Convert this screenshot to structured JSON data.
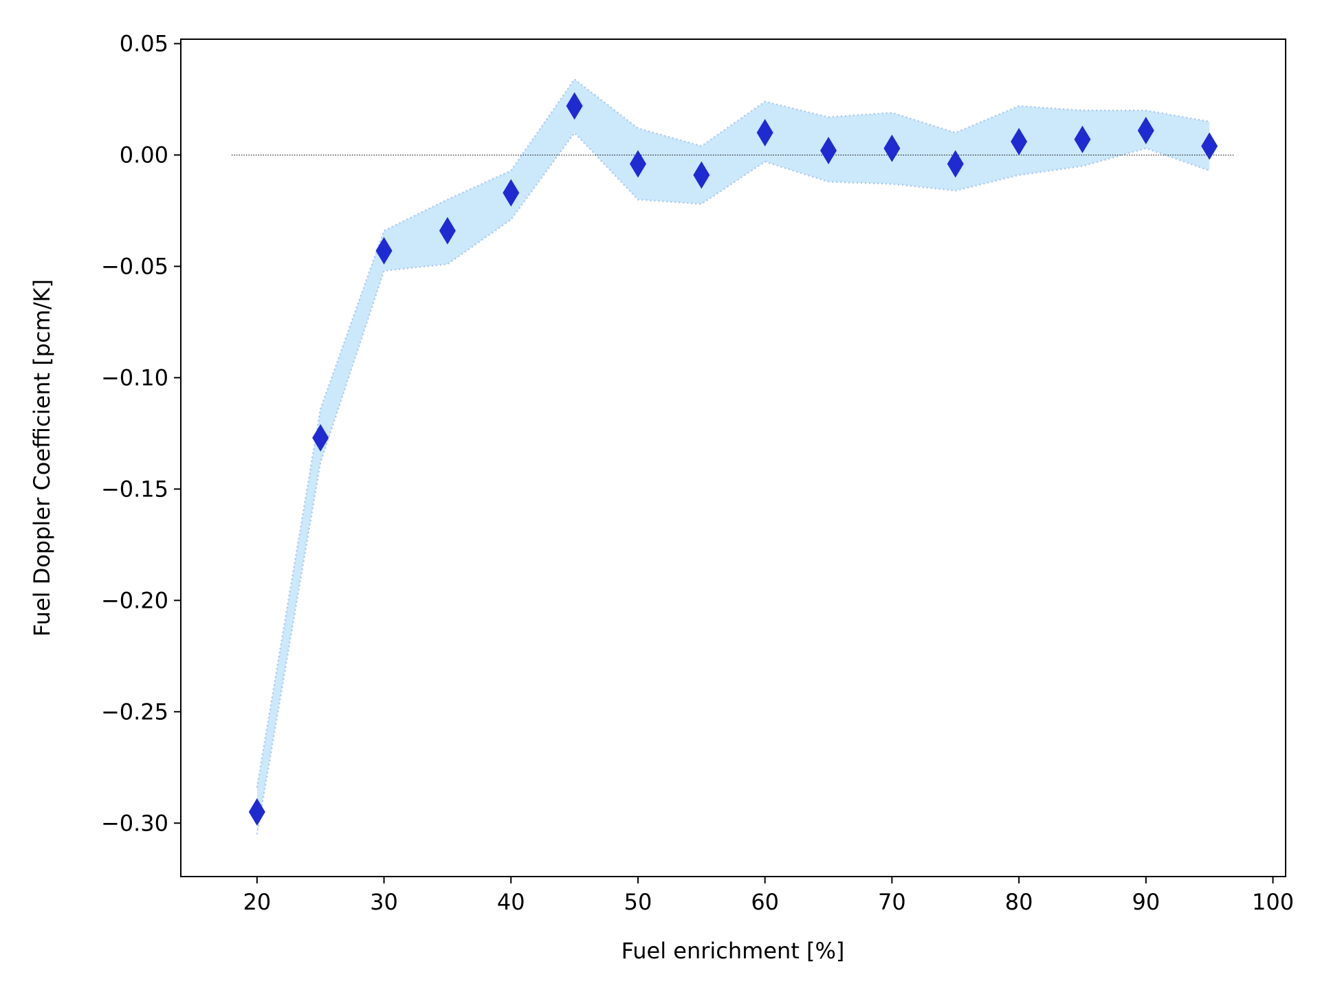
{
  "chart_data": {
    "type": "scatter",
    "title": "",
    "xlabel": "Fuel enrichment [%]",
    "ylabel": "Fuel Doppler Coefficient [pcm/K]",
    "xlim": [
      14,
      101
    ],
    "ylim": [
      -0.324,
      0.052
    ],
    "xticks": [
      20,
      30,
      40,
      50,
      60,
      70,
      80,
      90,
      100
    ],
    "xtick_labels": [
      "20",
      "30",
      "40",
      "50",
      "60",
      "70",
      "80",
      "90",
      "100"
    ],
    "yticks": [
      0.05,
      0.0,
      -0.05,
      -0.1,
      -0.15,
      -0.2,
      -0.25,
      -0.3
    ],
    "ytick_labels": [
      "0.05",
      "0.00",
      "−0.05",
      "−0.10",
      "−0.15",
      "−0.20",
      "−0.25",
      "−0.30"
    ],
    "grid": false,
    "legend": "none",
    "reference_line": {
      "y": 0.0,
      "x_from": 18,
      "x_to": 97,
      "style": "dotted",
      "color": "#000000"
    },
    "series": [
      {
        "marker": "thin-diamond",
        "color": "#1f2bd1",
        "x": [
          20,
          25,
          30,
          35,
          40,
          45,
          50,
          55,
          60,
          65,
          70,
          75,
          80,
          85,
          90,
          95
        ],
        "y": [
          -0.295,
          -0.127,
          -0.043,
          -0.034,
          -0.017,
          0.022,
          -0.004,
          -0.009,
          0.01,
          0.002,
          0.003,
          -0.004,
          0.006,
          0.007,
          0.011,
          0.004
        ]
      }
    ],
    "uncertainty_band": {
      "color": "#cce8fb",
      "edge_color": "#a9c8f0",
      "x": [
        20,
        25,
        30,
        35,
        40,
        45,
        50,
        55,
        60,
        65,
        70,
        75,
        80,
        85,
        90,
        95
      ],
      "lower": [
        -0.305,
        -0.138,
        -0.052,
        -0.049,
        -0.029,
        0.01,
        -0.02,
        -0.022,
        -0.003,
        -0.012,
        -0.013,
        -0.016,
        -0.009,
        -0.005,
        0.003,
        -0.007
      ],
      "upper": [
        -0.284,
        -0.114,
        -0.034,
        -0.02,
        -0.007,
        0.034,
        0.012,
        0.004,
        0.024,
        0.017,
        0.019,
        0.01,
        0.022,
        0.02,
        0.02,
        0.015
      ]
    }
  }
}
